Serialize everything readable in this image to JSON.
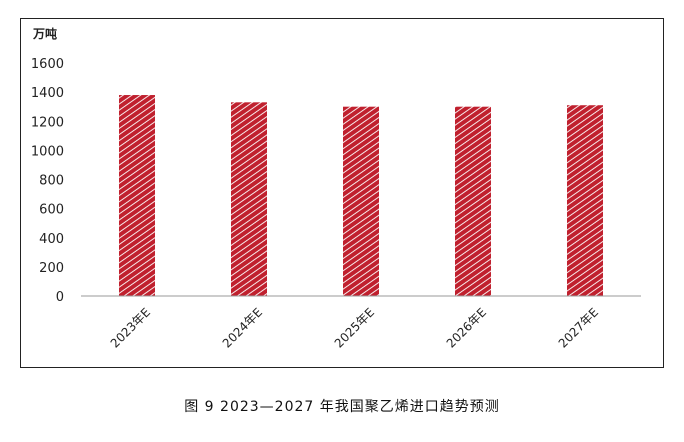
{
  "chart_data": {
    "type": "bar",
    "unit_label": "万吨",
    "categories": [
      "2023年E",
      "2024年E",
      "2025年E",
      "2026年E",
      "2027年E"
    ],
    "values": [
      1380,
      1330,
      1300,
      1300,
      1310
    ],
    "ylim": [
      0,
      1600
    ],
    "yticks": [
      "0",
      "200",
      "400",
      "600",
      "800",
      "1000",
      "1200",
      "1400",
      "1600"
    ],
    "grid": false,
    "bar_color": "#c0202e",
    "pattern": "diagonal-hatch"
  },
  "caption": "图 9  2023—2027 年我国聚乙烯进口趋势预测"
}
